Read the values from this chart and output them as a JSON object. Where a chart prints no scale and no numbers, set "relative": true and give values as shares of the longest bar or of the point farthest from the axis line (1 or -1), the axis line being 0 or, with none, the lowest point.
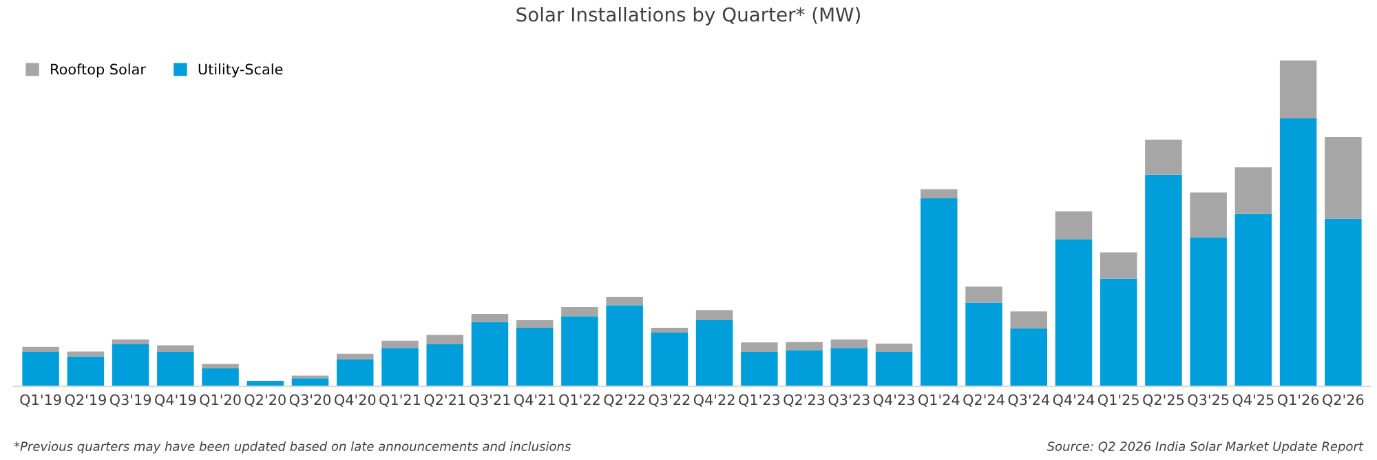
{
  "chart_data": {
    "type": "bar",
    "title": "Solar Installations by Quarter* (MW)",
    "relative": true,
    "stacked": true,
    "legend": "top left",
    "categories": [
      "Q1'19",
      "Q2'19",
      "Q3'19",
      "Q4'19",
      "Q1'20",
      "Q2'20",
      "Q3'20",
      "Q4'20",
      "Q1'21",
      "Q2'21",
      "Q3'21",
      "Q4'21",
      "Q1'22",
      "Q2'22",
      "Q3'22",
      "Q4'22",
      "Q1'23",
      "Q2'23",
      "Q3'23",
      "Q4'23",
      "Q1'24",
      "Q2'24",
      "Q3'24",
      "Q4'24",
      "Q1'25",
      "Q2'25",
      "Q3'25",
      "Q4'25",
      "Q1'26",
      "Q2'26"
    ],
    "series": [
      {
        "name": "Utility-Scale",
        "color": "#009fdb",
        "values": [
          0.106,
          0.092,
          0.129,
          0.106,
          0.055,
          0.017,
          0.025,
          0.083,
          0.118,
          0.129,
          0.197,
          0.18,
          0.215,
          0.249,
          0.165,
          0.203,
          0.106,
          0.111,
          0.118,
          0.106,
          0.577,
          0.257,
          0.178,
          0.452,
          0.331,
          0.649,
          0.457,
          0.529,
          0.822,
          0.514
        ]
      },
      {
        "name": "Rooftop Solar",
        "color": "#a6a6a6",
        "values": [
          0.015,
          0.015,
          0.015,
          0.02,
          0.014,
          null,
          0.008,
          0.017,
          0.022,
          0.029,
          0.025,
          0.023,
          0.028,
          0.026,
          0.015,
          0.031,
          0.029,
          0.025,
          0.026,
          0.025,
          0.028,
          0.049,
          0.052,
          0.085,
          0.08,
          0.108,
          0.138,
          0.143,
          0.178,
          0.251
        ]
      }
    ],
    "annotations": [
      "*Previous quarters may have been updated based on late announcements and inclusions",
      "Source: Q2 2026 India Solar Market Update Report"
    ]
  }
}
